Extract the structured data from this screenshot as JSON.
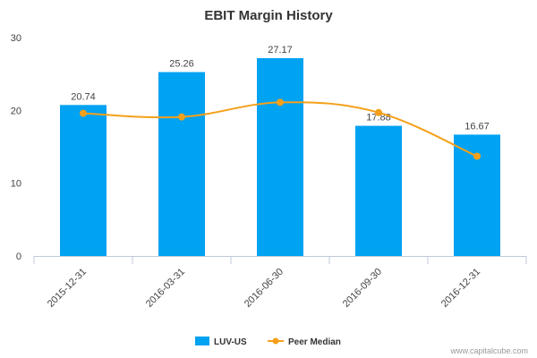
{
  "chart_data": {
    "type": "bar",
    "title": "EBIT Margin History",
    "categories": [
      "2015-12-31",
      "2016-03-31",
      "2016-06-30",
      "2016-09-30",
      "2016-12-31"
    ],
    "series": [
      {
        "name": "LUV-US",
        "type": "bar",
        "values": [
          20.74,
          25.26,
          27.17,
          17.88,
          16.67
        ],
        "data_labels": [
          "20.74",
          "25.26",
          "27.17",
          "17.88",
          "16.67"
        ],
        "color": "#00a2f2"
      },
      {
        "name": "Peer Median",
        "type": "line",
        "values": [
          19.6,
          19.1,
          21.1,
          19.7,
          13.7
        ],
        "color": "#f5a01a"
      }
    ],
    "yticks": [
      "0",
      "10",
      "20",
      "30"
    ],
    "ylim": [
      0,
      30
    ],
    "xlabel": "",
    "ylabel": "",
    "legend_position": "bottom",
    "grid": false
  },
  "credit": "www.capitalcube.com"
}
